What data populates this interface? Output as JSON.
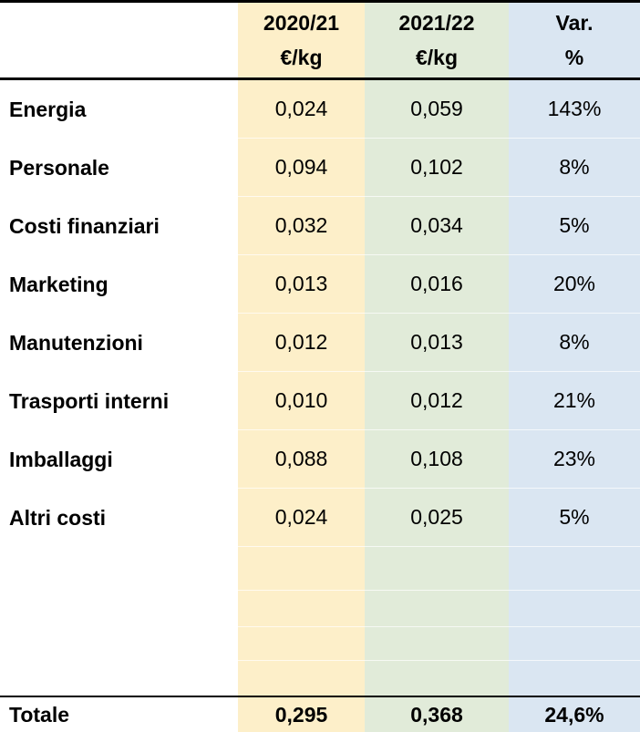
{
  "colors": {
    "col_2020_bg": "#FDEFC9",
    "col_2021_bg": "#E1EBD9",
    "col_var_bg": "#DAE6F2",
    "border": "#000000",
    "text": "#000000"
  },
  "chart_data": {
    "type": "table",
    "column_headers": [
      {
        "line1": "2020/21",
        "line2": "€/kg"
      },
      {
        "line1": "2021/22",
        "line2": "€/kg"
      },
      {
        "line1": "Var.",
        "line2": "%"
      }
    ],
    "rows": [
      {
        "label": "Energia",
        "v2020": "0,024",
        "v2021": "0,059",
        "var": "143%"
      },
      {
        "label": "Personale",
        "v2020": "0,094",
        "v2021": "0,102",
        "var": "8%"
      },
      {
        "label": "Costi finanziari",
        "v2020": "0,032",
        "v2021": "0,034",
        "var": "5%"
      },
      {
        "label": "Marketing",
        "v2020": "0,013",
        "v2021": "0,016",
        "var": "20%"
      },
      {
        "label": "Manutenzioni",
        "v2020": "0,012",
        "v2021": "0,013",
        "var": "8%"
      },
      {
        "label": "Trasporti interni",
        "v2020": "0,010",
        "v2021": "0,012",
        "var": "21%"
      },
      {
        "label": "Imballaggi",
        "v2020": "0,088",
        "v2021": "0,108",
        "var": "23%"
      },
      {
        "label": "Altri costi",
        "v2020": "0,024",
        "v2021": "0,025",
        "var": "5%"
      }
    ],
    "empty_row_count": 4,
    "total": {
      "label": "Totale",
      "v2020": "0,295",
      "v2021": "0,368",
      "var": "24,6%"
    },
    "layout_hints": {
      "decimal_separator": "comma",
      "value_alignment": "center",
      "label_alignment": "left"
    }
  }
}
